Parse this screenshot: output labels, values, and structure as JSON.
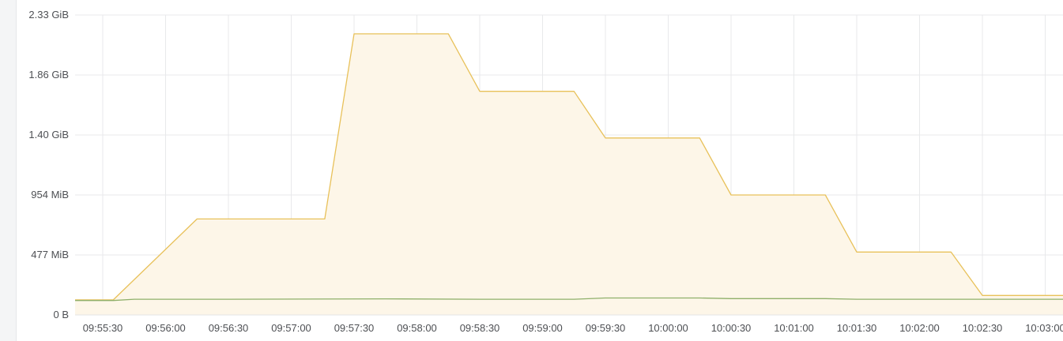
{
  "chart_data": {
    "type": "area",
    "title": "",
    "xlabel": "",
    "ylabel": "",
    "x_ticks": [
      "09:55:30",
      "09:56:00",
      "09:56:30",
      "09:57:00",
      "09:57:30",
      "09:58:00",
      "09:58:30",
      "09:59:00",
      "09:59:30",
      "10:00:00",
      "10:00:30",
      "10:01:00",
      "10:01:30",
      "10:02:00",
      "10:02:30",
      "10:03:00"
    ],
    "x_tick_seconds": [
      0,
      30,
      60,
      90,
      120,
      150,
      180,
      210,
      240,
      270,
      300,
      330,
      360,
      390,
      420,
      450
    ],
    "y_ticks": [
      {
        "label": "0 B",
        "value_mib": 0
      },
      {
        "label": "477 MiB",
        "value_mib": 477
      },
      {
        "label": "954 MiB",
        "value_mib": 954
      },
      {
        "label": "1.40 GiB",
        "value_mib": 1431
      },
      {
        "label": "1.86 GiB",
        "value_mib": 1908
      },
      {
        "label": "2.33 GiB",
        "value_mib": 2385
      }
    ],
    "ylim_mib": [
      0,
      2385
    ],
    "grid": true,
    "series": [
      {
        "color": "#e8c15a",
        "fill": "#fdf6e8",
        "points": [
          [
            -15,
            120
          ],
          [
            5,
            120
          ],
          [
            45,
            763
          ],
          [
            106,
            763
          ],
          [
            120,
            2235
          ],
          [
            165,
            2235
          ],
          [
            180,
            1778
          ],
          [
            225,
            1778
          ],
          [
            240,
            1407
          ],
          [
            285,
            1407
          ],
          [
            300,
            954
          ],
          [
            345,
            954
          ],
          [
            360,
            500
          ],
          [
            405,
            500
          ],
          [
            420,
            155
          ],
          [
            465,
            155
          ],
          [
            473,
            160
          ]
        ]
      },
      {
        "color": "#8fb06a",
        "fill": "none",
        "points": [
          [
            -15,
            115
          ],
          [
            5,
            115
          ],
          [
            15,
            125
          ],
          [
            60,
            125
          ],
          [
            135,
            128
          ],
          [
            180,
            125
          ],
          [
            225,
            125
          ],
          [
            240,
            135
          ],
          [
            285,
            135
          ],
          [
            300,
            130
          ],
          [
            345,
            130
          ],
          [
            360,
            125
          ],
          [
            405,
            125
          ],
          [
            473,
            125
          ]
        ]
      }
    ]
  }
}
